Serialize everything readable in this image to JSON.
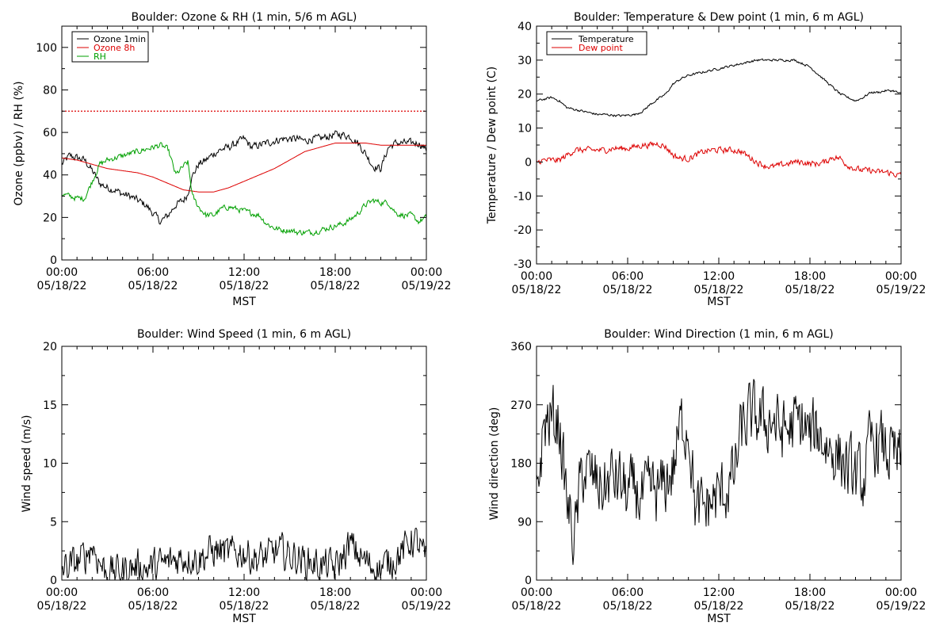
{
  "colors": {
    "black": "#000000",
    "red": "#dd0000",
    "green": "#00a000"
  },
  "chart_data": [
    {
      "type": "line",
      "title": "Boulder: Ozone & RH (1 min, 5/6 m AGL)",
      "ylabel": "Ozone (ppbv) / RH (%)",
      "xlabel": "MST",
      "xlim": [
        0,
        24
      ],
      "ylim": [
        0,
        110
      ],
      "yticks": [
        "0",
        "20",
        "40",
        "60",
        "80",
        "100"
      ],
      "ytick_values": [
        0,
        20,
        40,
        60,
        80,
        100
      ],
      "xticks": [
        {
          "v": 0,
          "t": "00:00",
          "d": "05/18/22"
        },
        {
          "v": 6,
          "t": "06:00",
          "d": "05/18/22"
        },
        {
          "v": 12,
          "t": "12:00",
          "d": "05/18/22"
        },
        {
          "v": 18,
          "t": "18:00",
          "d": "05/18/22"
        },
        {
          "v": 24,
          "t": "00:00",
          "d": "05/19/22"
        }
      ],
      "reference_line": {
        "y": 70,
        "color": "#dd0000",
        "style": "dotted"
      },
      "legend_position": "top-left",
      "series": [
        {
          "name": "Ozone 1min",
          "color": "#000000",
          "noise": 1.6,
          "x": [
            0,
            0.5,
            1,
            1.5,
            2,
            2.5,
            3,
            3.5,
            4,
            4.5,
            5,
            5.5,
            6,
            6.5,
            7,
            7.5,
            8,
            8.3,
            8.5,
            9,
            9.5,
            10,
            10.5,
            11,
            11.5,
            12,
            12.5,
            13,
            13.5,
            14,
            14.5,
            15,
            15.5,
            16,
            16.5,
            17,
            17.5,
            18,
            18.5,
            19,
            19.5,
            20,
            20.5,
            21,
            21.5,
            22,
            22.5,
            23,
            23.5,
            24
          ],
          "y": [
            45,
            49,
            48,
            47,
            42,
            36,
            34,
            33,
            31,
            30,
            28,
            26,
            22,
            18,
            21,
            26,
            28,
            31,
            38,
            45,
            47,
            50,
            52,
            53,
            55,
            57,
            53,
            54,
            55,
            56,
            57,
            57,
            57,
            56,
            57,
            57,
            58,
            59,
            59,
            58,
            55,
            50,
            44,
            43,
            53,
            55,
            55,
            55,
            55,
            52
          ]
        },
        {
          "name": "Ozone 8h",
          "color": "#dd0000",
          "noise": 0,
          "x": [
            0,
            1,
            2,
            3,
            4,
            5,
            6,
            7,
            8,
            9,
            10,
            11,
            12,
            13,
            14,
            15,
            16,
            17,
            18,
            19,
            20,
            21,
            22,
            23,
            24
          ],
          "y": [
            48,
            47,
            45,
            43,
            42,
            41,
            39,
            36,
            33,
            32,
            32,
            34,
            37,
            40,
            43,
            47,
            51,
            53,
            55,
            55,
            55,
            54,
            54,
            54,
            54
          ]
        },
        {
          "name": "RH",
          "color": "#00a000",
          "noise": 1.2,
          "x": [
            0,
            0.5,
            1,
            1.5,
            2,
            2.5,
            3,
            3.5,
            4,
            4.5,
            5,
            5.5,
            6,
            6.5,
            7,
            7.5,
            8,
            8.3,
            8.6,
            9,
            9.5,
            10,
            10.5,
            11,
            11.5,
            12,
            12.5,
            13,
            13.5,
            14,
            14.5,
            15,
            15.5,
            16,
            16.5,
            17,
            17.5,
            18,
            18.5,
            19,
            19.5,
            20,
            20.5,
            21,
            21.5,
            22,
            22.5,
            23,
            23.5,
            24
          ],
          "y": [
            31,
            30,
            29,
            29,
            37,
            45,
            47,
            48,
            49,
            50,
            51,
            52,
            53,
            54,
            52,
            40,
            44,
            46,
            30,
            25,
            21,
            21,
            24,
            25,
            24,
            23,
            22,
            21,
            17,
            15,
            14,
            14,
            13,
            13,
            13,
            14,
            15,
            16,
            17,
            19,
            22,
            26,
            28,
            27,
            27,
            22,
            21,
            21,
            18,
            20
          ]
        }
      ]
    },
    {
      "type": "line",
      "title": "Boulder: Temperature & Dew point (1 min, 6 m AGL)",
      "ylabel": "Temperature / Dew point (C)",
      "xlabel": "MST",
      "xlim": [
        0,
        24
      ],
      "ylim": [
        -30,
        40
      ],
      "yticks": [
        "-30",
        "-20",
        "-10",
        "0",
        "10",
        "20",
        "30",
        "40"
      ],
      "ytick_values": [
        -30,
        -20,
        -10,
        0,
        10,
        20,
        30,
        40
      ],
      "xticks": [
        {
          "v": 0,
          "t": "00:00",
          "d": "05/18/22"
        },
        {
          "v": 6,
          "t": "06:00",
          "d": "05/18/22"
        },
        {
          "v": 12,
          "t": "12:00",
          "d": "05/18/22"
        },
        {
          "v": 18,
          "t": "18:00",
          "d": "05/18/22"
        },
        {
          "v": 24,
          "t": "00:00",
          "d": "05/19/22"
        }
      ],
      "legend_position": "top-left",
      "series": [
        {
          "name": "Temperature",
          "color": "#000000",
          "noise": 0.3,
          "x": [
            0,
            0.5,
            1,
            1.5,
            2,
            2.5,
            3,
            3.5,
            4,
            4.5,
            5,
            5.5,
            6,
            6.5,
            7,
            7.5,
            8,
            8.5,
            9,
            9.5,
            10,
            10.5,
            11,
            11.5,
            12,
            12.5,
            13,
            13.5,
            14,
            14.5,
            15,
            15.5,
            16,
            16.5,
            17,
            17.5,
            18,
            18.5,
            19,
            19.5,
            20,
            20.5,
            21,
            21.5,
            22,
            22.5,
            23,
            23.5,
            24
          ],
          "y": [
            18,
            18.5,
            19,
            18,
            16,
            15.5,
            15,
            14.5,
            14,
            14,
            13.8,
            13.6,
            13.8,
            14,
            15,
            17,
            18.5,
            20,
            23,
            24.5,
            25.5,
            26,
            26.5,
            27,
            27.5,
            28,
            28.5,
            29,
            29.5,
            30,
            30,
            30,
            30,
            30,
            30,
            29,
            28,
            26,
            24,
            22,
            20,
            19,
            18,
            19,
            20.5,
            20.5,
            21,
            21,
            20
          ]
        },
        {
          "name": "Dew point",
          "color": "#dd0000",
          "noise": 0.8,
          "x": [
            0,
            0.5,
            1,
            1.5,
            2,
            2.5,
            3,
            3.5,
            4,
            4.5,
            5,
            5.5,
            6,
            6.5,
            7,
            7.5,
            8,
            8.5,
            9,
            9.5,
            10,
            10.5,
            11,
            11.5,
            12,
            12.5,
            13,
            13.5,
            14,
            14.5,
            15,
            15.5,
            16,
            16.5,
            17,
            17.5,
            18,
            18.5,
            19,
            19.5,
            20,
            20.5,
            21,
            21.5,
            22,
            22.5,
            23,
            23.5,
            24
          ],
          "y": [
            0,
            0.5,
            0.5,
            0.5,
            2,
            3.5,
            3.5,
            3.5,
            3.5,
            3.5,
            4,
            4,
            4,
            4.5,
            5,
            5,
            5.5,
            4.5,
            2,
            1,
            1,
            2,
            3,
            3.5,
            3.5,
            3.5,
            3.5,
            3,
            1.5,
            0,
            -1,
            -1.5,
            -1,
            -0.5,
            0,
            0,
            -0.5,
            -0.5,
            0,
            1.5,
            1,
            -1,
            -2,
            -2.5,
            -2.5,
            -3,
            -3,
            -3.5,
            -4
          ]
        }
      ]
    },
    {
      "type": "line",
      "title": "Boulder: Wind Speed (1 min, 6 m AGL)",
      "ylabel": "Wind speed (m/s)",
      "xlabel": "MST",
      "xlim": [
        0,
        24
      ],
      "ylim": [
        0,
        20
      ],
      "yticks": [
        "0",
        "5",
        "10",
        "15",
        "20"
      ],
      "ytick_values": [
        0,
        5,
        10,
        15,
        20
      ],
      "xticks": [
        {
          "v": 0,
          "t": "00:00",
          "d": "05/18/22"
        },
        {
          "v": 6,
          "t": "06:00",
          "d": "05/18/22"
        },
        {
          "v": 12,
          "t": "12:00",
          "d": "05/18/22"
        },
        {
          "v": 18,
          "t": "18:00",
          "d": "05/18/22"
        },
        {
          "v": 24,
          "t": "00:00",
          "d": "05/19/22"
        }
      ],
      "series": [
        {
          "color": "#000000",
          "noise": 1.3,
          "x": [
            0,
            0.5,
            1,
            1.5,
            2,
            2.5,
            3,
            3.5,
            4,
            4.5,
            5,
            5.5,
            6,
            6.5,
            7,
            7.5,
            8,
            8.5,
            9,
            9.5,
            10,
            10.5,
            11,
            11.5,
            12,
            12.5,
            13,
            13.5,
            14,
            14.5,
            15,
            15.5,
            16,
            16.5,
            17,
            17.5,
            18,
            18.5,
            19,
            19.5,
            20,
            20.5,
            21,
            21.5,
            22,
            22.5,
            23,
            23.5,
            24
          ],
          "y": [
            1,
            1.2,
            1.5,
            2,
            3,
            1.5,
            0.6,
            0.8,
            0.8,
            1,
            1.2,
            1,
            1.2,
            1.3,
            1.5,
            1.8,
            2,
            2,
            1.8,
            2.2,
            2.5,
            2.5,
            2.2,
            2.4,
            2.4,
            2,
            1.8,
            2,
            2.4,
            2.4,
            2.1,
            2,
            1.6,
            1.5,
            1.2,
            1.2,
            1,
            2,
            3,
            2.2,
            1.5,
            1.2,
            1,
            1.5,
            2,
            2.5,
            3.5,
            3,
            1.5
          ]
        }
      ]
    },
    {
      "type": "line",
      "title": "Boulder: Wind Direction (1 min, 6 m AGL)",
      "ylabel": "Wind direction (deg)",
      "xlabel": "MST",
      "xlim": [
        0,
        24
      ],
      "ylim": [
        0,
        360
      ],
      "yticks": [
        "0",
        "90",
        "180",
        "270",
        "360"
      ],
      "ytick_values": [
        0,
        90,
        180,
        270,
        360
      ],
      "xticks": [
        {
          "v": 0,
          "t": "00:00",
          "d": "05/18/22"
        },
        {
          "v": 6,
          "t": "06:00",
          "d": "05/18/22"
        },
        {
          "v": 12,
          "t": "12:00",
          "d": "05/18/22"
        },
        {
          "v": 18,
          "t": "18:00",
          "d": "05/18/22"
        },
        {
          "v": 24,
          "t": "00:00",
          "d": "05/19/22"
        }
      ],
      "series": [
        {
          "color": "#000000",
          "noise": 45,
          "x": [
            0,
            0.5,
            1,
            1.5,
            2,
            2.5,
            3,
            3.5,
            4,
            4.5,
            5,
            5.5,
            6,
            6.5,
            7,
            7.5,
            8,
            8.5,
            9,
            9.5,
            10,
            10.5,
            11,
            11.5,
            12,
            12.5,
            13,
            13.5,
            14,
            14.5,
            15,
            15.5,
            16,
            16.5,
            17,
            17.5,
            18,
            18.5,
            19,
            19.5,
            20,
            20.5,
            21,
            21.5,
            22,
            22.5,
            23,
            23.5,
            24
          ],
          "y": [
            130,
            240,
            250,
            240,
            120,
            60,
            170,
            160,
            150,
            140,
            160,
            150,
            130,
            140,
            120,
            140,
            130,
            150,
            170,
            240,
            240,
            100,
            110,
            120,
            130,
            140,
            160,
            230,
            250,
            250,
            240,
            250,
            230,
            230,
            240,
            240,
            220,
            230,
            210,
            200,
            190,
            170,
            160,
            150,
            210,
            210,
            200,
            190,
            180
          ]
        }
      ]
    }
  ]
}
